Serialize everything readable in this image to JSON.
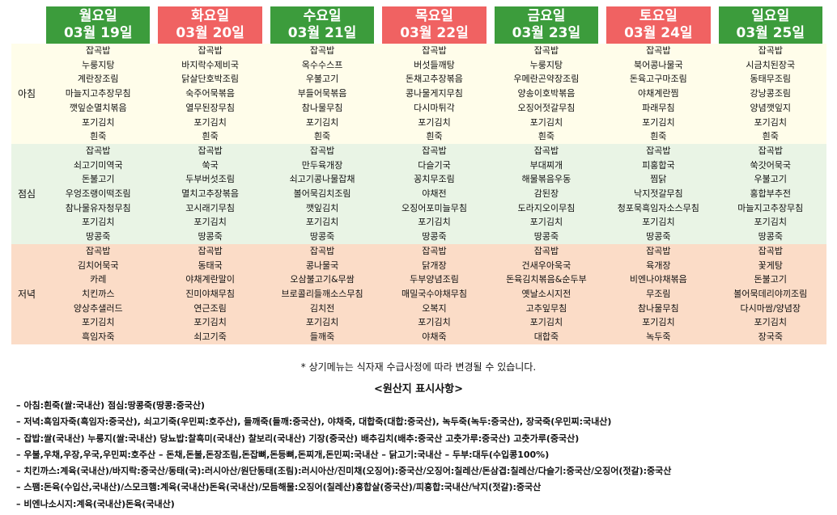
{
  "days": [
    {
      "name": "월요일",
      "date": "03월 19일",
      "weekend": false
    },
    {
      "name": "화요일",
      "date": "03월 20일",
      "weekend": true
    },
    {
      "name": "수요일",
      "date": "03월 21일",
      "weekend": false
    },
    {
      "name": "목요일",
      "date": "03월 22일",
      "weekend": true
    },
    {
      "name": "금요일",
      "date": "03월 23일",
      "weekend": false
    },
    {
      "name": "토요일",
      "date": "03월 24일",
      "weekend": true
    },
    {
      "name": "일요일",
      "date": "03월 25일",
      "weekend": false
    }
  ],
  "meals": [
    {
      "key": "breakfast",
      "label": "아침",
      "items": [
        [
          "잡곡밥",
          "누룽지탕",
          "계란장조림",
          "마늘지고추장무침",
          "깻잎순멸치볶음",
          "포기김치",
          "흰죽"
        ],
        [
          "잡곡밥",
          "바지락수제비국",
          "닭살단호박조림",
          "숙주어묵볶음",
          "열무된장무침",
          "포기김치",
          "흰죽"
        ],
        [
          "잡곡밥",
          "옥수수스프",
          "우불고기",
          "부들어묵볶음",
          "참나물무침",
          "포기김치",
          "흰죽"
        ],
        [
          "잡곡밥",
          "버섯들깨탕",
          "돈채고추장볶음",
          "콩나물게지무침",
          "다시마튀각",
          "포기김치",
          "흰죽"
        ],
        [
          "잡곡밥",
          "누룽지탕",
          "우메란곤약장조림",
          "양송이호박볶음",
          "오징어젓갈무침",
          "포기김치",
          "흰죽"
        ],
        [
          "잡곡밥",
          "북어콩나물국",
          "돈육고구마조림",
          "야채계란찜",
          "파래무침",
          "포기김치",
          "흰죽"
        ],
        [
          "잡곡밥",
          "시금치된장국",
          "동태무조림",
          "강낭콩조림",
          "양념깻잎지",
          "포기김치",
          "흰죽"
        ]
      ]
    },
    {
      "key": "lunch",
      "label": "점심",
      "items": [
        [
          "잡곡밥",
          "쇠고기미역국",
          "돈불고기",
          "우엉조랭이떡조림",
          "참나물유자청무침",
          "포기김치",
          "땅콩죽"
        ],
        [
          "잡곡밥",
          "쑥국",
          "두부버섯조림",
          "멸치고추장볶음",
          "꼬시래기무침",
          "포기김치",
          "땅콩죽"
        ],
        [
          "잡곡밥",
          "만두육개장",
          "쇠고기콩나물잡채",
          "볼어묵김치조림",
          "깻잎김치",
          "포기김치",
          "땅콩죽"
        ],
        [
          "잡곡밥",
          "다슬기국",
          "꽁치무조림",
          "야채전",
          "오징어포미늘무침",
          "포기김치",
          "땅콩죽"
        ],
        [
          "잡곡밥",
          "부대찌개",
          "해물볶음우동",
          "감된장",
          "도라지오이무침",
          "포기김치",
          "땅콩죽"
        ],
        [
          "잡곡밥",
          "피홍합국",
          "찜닭",
          "낙지젓갈무침",
          "청포묵흑임자소스무침",
          "포기김치",
          "땅콩죽"
        ],
        [
          "잡곡밥",
          "쑥갓어묵국",
          "우불고기",
          "홍합부추전",
          "마늘지고추장무침",
          "포기김치",
          "땅콩죽"
        ]
      ]
    },
    {
      "key": "dinner",
      "label": "저녁",
      "items": [
        [
          "잡곡밥",
          "김치어묵국",
          "카레",
          "치킨까스",
          "양상추샐러드",
          "포기김치",
          "흑임자죽"
        ],
        [
          "잡곡밥",
          "동태국",
          "야채계란말이",
          "진미야채무침",
          "연근조림",
          "포기김치",
          "쇠고기죽"
        ],
        [
          "잡곡밥",
          "콩나물국",
          "오삼불고기&무쌈",
          "브로콜리들깨소스무침",
          "김치전",
          "포기김치",
          "들깨죽"
        ],
        [
          "잡곡밥",
          "닭개장",
          "두부양념조림",
          "매밀국수야채무침",
          "오복지",
          "포기김치",
          "야채죽"
        ],
        [
          "잡곡밥",
          "건새우아욱국",
          "돈육김치볶음&순두부",
          "옛날소시지전",
          "고추잎무침",
          "포기김치",
          "대합죽"
        ],
        [
          "잡곡밥",
          "육개장",
          "비엔나야채볶음",
          "무조림",
          "참나물무침",
          "포기김치",
          "녹두죽"
        ],
        [
          "잡곡밥",
          "꽃게탕",
          "돈불고기",
          "볼어묵데리야끼조림",
          "다시마쌈/양념장",
          "포기김치",
          "장국죽"
        ]
      ]
    }
  ],
  "note": "* 상기메뉴는 식자재 수급사정에 따라 변경될 수 있습니다.",
  "origin_title": "<원산지 표시사항>",
  "origin_lines": [
    "– 아침:흰죽(쌀:국내산) 점심:땅콩죽(땅콩:중국산)",
    "– 저녁:흑임자죽(흑임자:중국산), 쇠고기죽(우민찌:호주산), 들깨죽(들깨:중국산), 야채죽, 대합죽(대합:중국산), 녹두죽(녹두:중국산), 장국죽(우민찌:국내산)",
    "– 잡밥:쌀(국내산) 누룽지(쌀:국내산) 당뇨밥:찰흑미(국내산) 찰보리(국내산) 기장(중국산) 배추김치(배추:중국산 고춧가루:중국산) 고춧가루(중국산)",
    "– 우불,우채,우장,우국,우민찌:호주산 – 돈채,돈불,돈장조림,돈잡뼈,돈등뼈,돈찌개,돈민찌:국내산 – 닭고기:국내산 – 두부:대두(수입콩100%)",
    "– 치킨까스:계육(국내산)/바지락:중국산/동태(국):러시아산/원단동태(조림):러시아산/진미채(오징어):중국산/오징어:칠레산/돈삼겹:칠레산/다슬기:중국산/오징어(젓갈):중국산",
    "– 스팸:돈육(수입산,국내산)/스모크햄:계육(국내산)돈육(국내산)/모듬해물:오징어(칠레산)홍합살(중국산)/피홍합:국내산/낙지(젓갈):중국산",
    "– 비엔나소시지:계육(국내산)돈육(국내산)"
  ]
}
